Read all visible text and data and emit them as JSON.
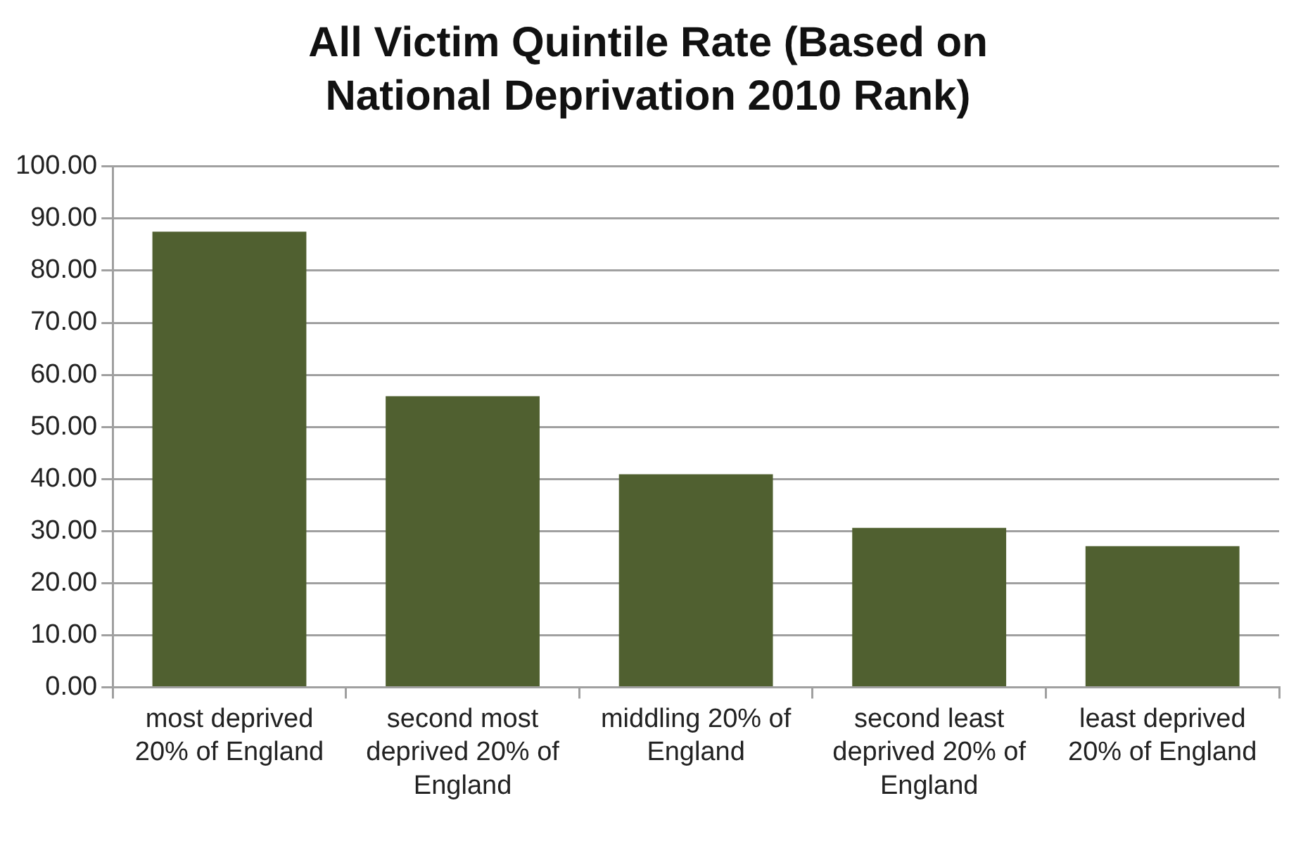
{
  "chart_data": {
    "type": "bar",
    "title": "All Victim Quintile Rate (Based on National Deprivation 2010 Rank)",
    "categories": [
      "most deprived 20% of England",
      "second most deprived 20% of England",
      "middling 20% of England",
      "second least deprived 20% of England",
      "least deprived 20% of England"
    ],
    "values": [
      87.5,
      55.9,
      40.9,
      30.6,
      27.1
    ],
    "color": "#506030",
    "ylim": [
      0,
      100
    ],
    "yticks": [
      {
        "value": 0,
        "label": "0.00"
      },
      {
        "value": 10,
        "label": "10.00"
      },
      {
        "value": 20,
        "label": "20.00"
      },
      {
        "value": 30,
        "label": "30.00"
      },
      {
        "value": 40,
        "label": "40.00"
      },
      {
        "value": 50,
        "label": "50.00"
      },
      {
        "value": 60,
        "label": "60.00"
      },
      {
        "value": 70,
        "label": "70.00"
      },
      {
        "value": 80,
        "label": "80.00"
      },
      {
        "value": 90,
        "label": "90.00"
      },
      {
        "value": 100,
        "label": "100.00"
      }
    ],
    "grid": "y",
    "legend": false
  }
}
